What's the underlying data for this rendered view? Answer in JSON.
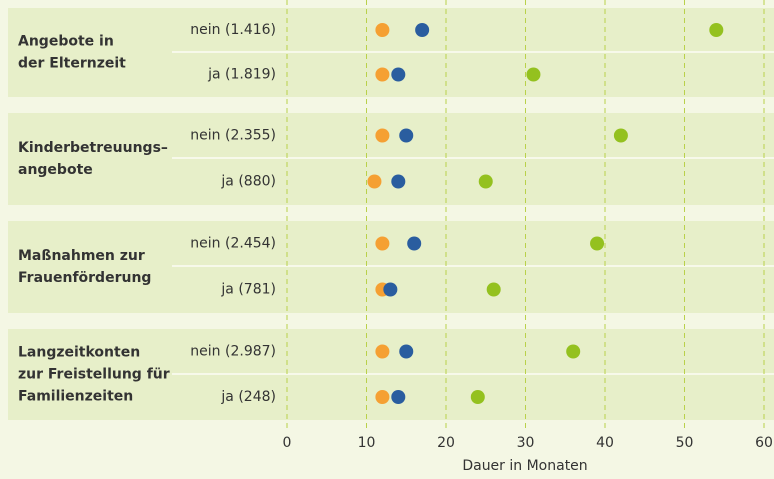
{
  "chart_data": {
    "type": "dot",
    "xlabel": "Dauer in Monaten",
    "xlim": [
      0,
      60
    ],
    "xticks": [
      0,
      10,
      20,
      30,
      40,
      50,
      60
    ],
    "grid": true,
    "groups": [
      {
        "label": [
          "Angebote in",
          "der Elternzeit"
        ]
      },
      {
        "label": [
          "Kinderbetreuungs–",
          "angebote"
        ]
      },
      {
        "label": [
          "Maßnahmen zur",
          "Frauenförderung"
        ]
      },
      {
        "label": [
          "Langzeitkonten",
          "zur Freistellung für",
          "Familienzeiten"
        ]
      }
    ],
    "categories": [
      "nein (1.416)",
      "ja (1.819)",
      "nein (2.355)",
      "ja (880)",
      "nein (2.454)",
      "ja (781)",
      "nein (2.987)",
      "ja (248)"
    ],
    "series": [
      {
        "color": "#f5a033",
        "values": [
          12,
          12,
          12,
          11,
          12,
          12,
          12,
          12
        ]
      },
      {
        "color": "#2a5d9f",
        "values": [
          17,
          14,
          15,
          14,
          16,
          13,
          15,
          14
        ]
      },
      {
        "color": "#94c11f",
        "values": [
          54,
          31,
          42,
          25,
          39,
          26,
          36,
          24
        ]
      }
    ]
  }
}
